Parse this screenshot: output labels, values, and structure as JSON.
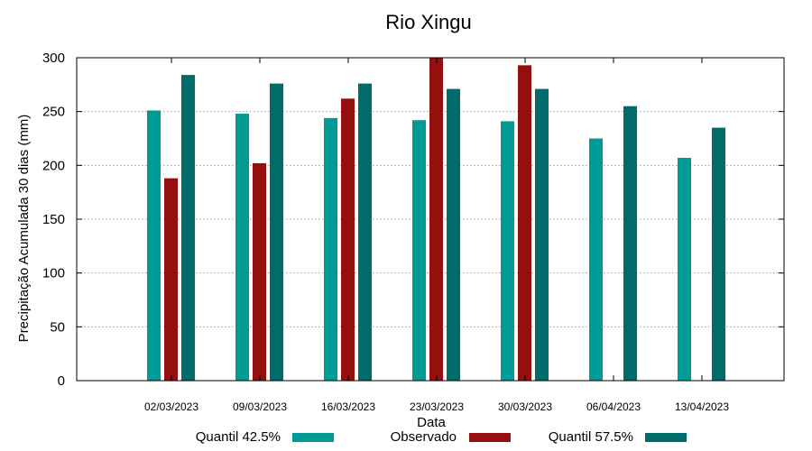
{
  "chart_data": {
    "type": "bar",
    "title": "Rio Xingu",
    "xlabel": "Data",
    "ylabel": "Precipitação Acumulada 30 dias (mm)",
    "ylim": [
      0,
      300
    ],
    "yticks": [
      0,
      50,
      100,
      150,
      200,
      250,
      300
    ],
    "grid": true,
    "legend": "bottom",
    "categories": [
      "02/03/2023",
      "09/03/2023",
      "16/03/2023",
      "23/03/2023",
      "30/03/2023",
      "06/04/2023",
      "13/04/2023"
    ],
    "series": [
      {
        "name": "Quantil 42.5%",
        "color": "#009b95",
        "values": [
          251,
          248,
          244,
          242,
          241,
          225,
          207
        ]
      },
      {
        "name": "Observado",
        "color": "#960f0f",
        "values": [
          188,
          202,
          262,
          300,
          293,
          null,
          null
        ]
      },
      {
        "name": "Quantil 57.5%",
        "color": "#006b68",
        "values": [
          284,
          276,
          276,
          271,
          271,
          255,
          235
        ]
      }
    ]
  }
}
